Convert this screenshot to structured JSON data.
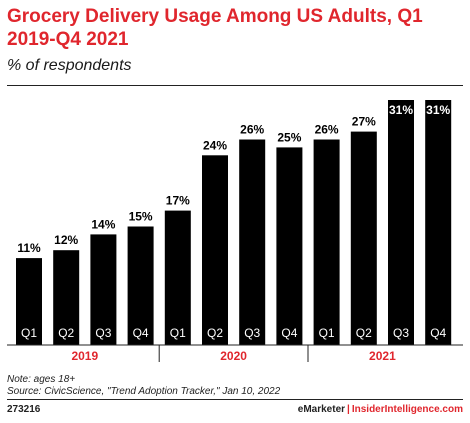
{
  "chart_data": {
    "type": "bar",
    "title": "Grocery Delivery Usage Among US Adults, Q1 2019-Q4 2021",
    "subtitle": "% of respondents",
    "categories": [
      "Q1",
      "Q2",
      "Q3",
      "Q4",
      "Q1",
      "Q2",
      "Q3",
      "Q4",
      "Q1",
      "Q2",
      "Q3",
      "Q4"
    ],
    "years": [
      "2019",
      "2020",
      "2021"
    ],
    "values": [
      11,
      12,
      14,
      15,
      17,
      24,
      26,
      25,
      26,
      27,
      31,
      31
    ],
    "value_suffix": "%",
    "ylim": [
      0,
      31
    ],
    "grid": false,
    "bar_color": "#000000",
    "accent_color": "#e0262d"
  },
  "notes": {
    "note": "Note: ages 18+",
    "source": "Source: CivicScience, \"Trend Adoption Tracker,\" Jan 10, 2022"
  },
  "footer": {
    "chart_id": "273216",
    "brand_left": "eMarketer",
    "separator": "|",
    "brand_right": "InsiderIntelligence.com"
  }
}
